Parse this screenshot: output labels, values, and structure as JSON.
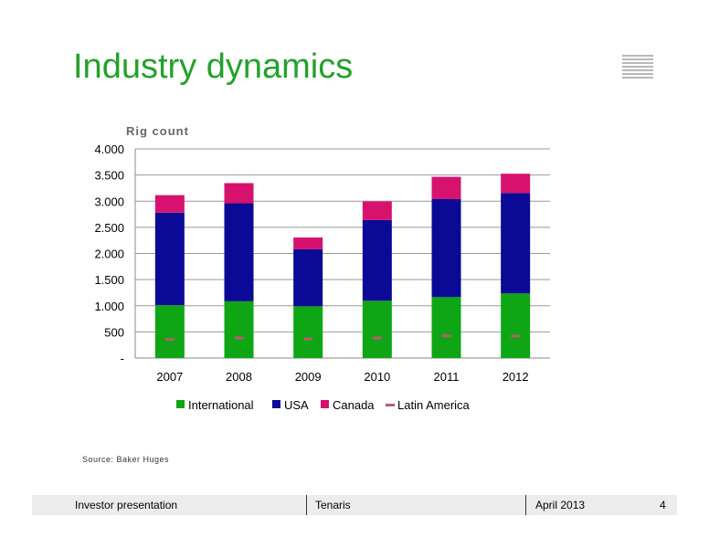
{
  "slide": {
    "title": "Industry dynamics",
    "source": "Source:  Baker Huges"
  },
  "footer": {
    "left": "Investor presentation",
    "center": "Tenaris",
    "date": "April 2013",
    "page": "4"
  },
  "colors": {
    "title": "#22a22a",
    "international": "#0ea614",
    "usa": "#0a0a96",
    "canada": "#d6126e",
    "latin_america": "#b85c6a"
  },
  "chart_data": {
    "type": "bar",
    "stacked": true,
    "ylabel": "Rig count",
    "ylim": [
      0,
      4000
    ],
    "y_ticks": [
      "-",
      "500",
      "1.000",
      "1.500",
      "2.000",
      "2.500",
      "3.000",
      "3.500",
      "4.000"
    ],
    "grid": true,
    "legend_position": "bottom",
    "categories": [
      "2007",
      "2008",
      "2009",
      "2010",
      "2011",
      "2012"
    ],
    "series": [
      {
        "name": "International",
        "values": [
          1010,
          1085,
          990,
          1095,
          1165,
          1235
        ]
      },
      {
        "name": "USA",
        "values": [
          1770,
          1875,
          1090,
          1545,
          1875,
          1920
        ]
      },
      {
        "name": "Canada",
        "values": [
          335,
          385,
          225,
          355,
          425,
          370
        ]
      },
      {
        "name": "Latin America",
        "type": "marker",
        "values": [
          355,
          385,
          365,
          385,
          425,
          420
        ]
      }
    ]
  }
}
